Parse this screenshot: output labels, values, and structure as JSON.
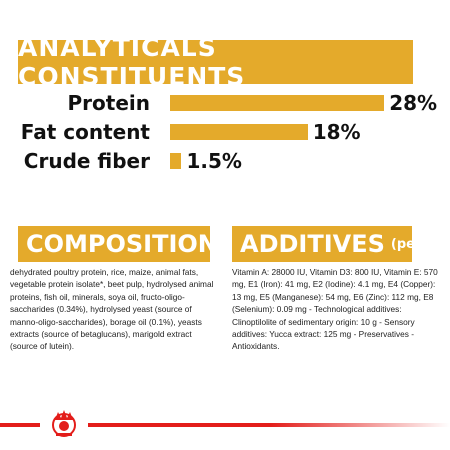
{
  "header": {
    "title": "ANALYTICALS CONSTITUENTS"
  },
  "constituents": [
    {
      "label": "Protein",
      "value": "28%",
      "percent": 28
    },
    {
      "label": "Fat content",
      "value": "18%",
      "percent": 18
    },
    {
      "label": "Crude fiber",
      "value": "1.5%",
      "percent": 1.5
    }
  ],
  "composition": {
    "title": "COMPOSITION",
    "text": "dehydrated poultry protein, rice, maize, animal fats, vegetable protein isolate*, beet pulp, hydrolysed animal proteins, fish oil, minerals, soya oil, fructo-oligo-saccharides (0.34%), hydrolysed yeast (source of manno-oligo-saccharides), borage oil (0.1%), yeasts extracts (source of betaglucans), marigold extract (source of lutein)."
  },
  "additives": {
    "title": "ADDITIVES",
    "subtitle": "(per kg)",
    "text": "Vitamin A: 28000 IU, Vitamin D3: 800 IU, Vitamin E: 570 mg, E1 (Iron): 41 mg, E2 (Iodine): 4.1 mg, E4 (Copper): 13 mg, E5 (Manganese): 54 mg, E6 (Zinc): 112 mg, E8 (Selenium): 0.09 mg - Technological additives: Clinoptilolite of sedimentary origin: 10 g - Sensory additives: Yucca extract: 125 mg - Preservatives - Antioxidants."
  },
  "colors": {
    "accent": "#e4aa2b",
    "brand_red": "#e31d1a"
  },
  "footer": {
    "logo_icon": "royal-canin-crown-logo"
  }
}
